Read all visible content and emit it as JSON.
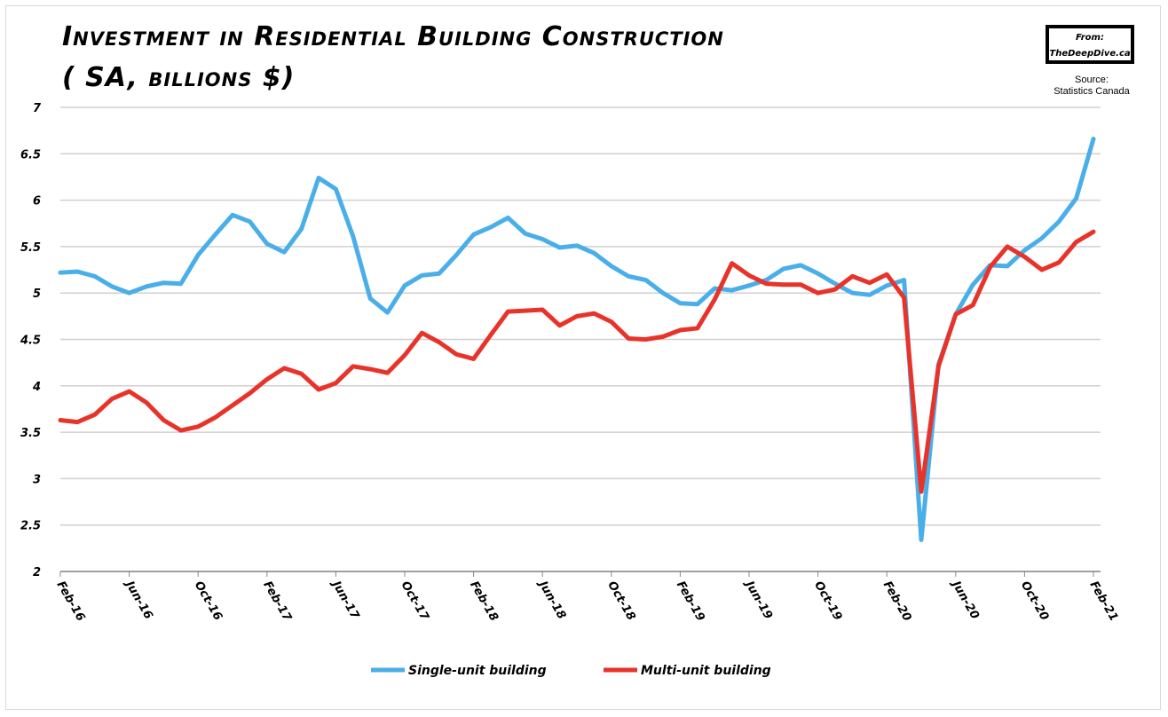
{
  "title_line1": "Investment in Residential Building Construction",
  "title_line2": "( SA, billions $)",
  "logo": {
    "line1": "From:",
    "line2": "TheDeepDive.ca"
  },
  "source": {
    "label": "Source:",
    "value": "Statistics Canada"
  },
  "chart_data": {
    "type": "line",
    "title": "Investment in Residential Building Construction ( SA, billions $)",
    "xlabel": "",
    "ylabel": "",
    "ylim": [
      2,
      7
    ],
    "yticks": [
      "2",
      "2.5",
      "3",
      "3.5",
      "4",
      "4.5",
      "5",
      "5.5",
      "6",
      "6.5",
      "7"
    ],
    "xticks": [
      "Feb-16",
      "Jun-16",
      "Oct-16",
      "Feb-17",
      "Jun-17",
      "Oct-17",
      "Feb-18",
      "Jun-18",
      "Oct-18",
      "Feb-19",
      "Jun-19",
      "Oct-19",
      "Feb-20",
      "Jun-20",
      "Oct-20",
      "Feb-21"
    ],
    "x_start": "Feb-16",
    "x_end": "Feb-21",
    "x_frequency": "monthly",
    "grid": "horizontal",
    "legend": "bottom",
    "series": [
      {
        "name": "Single-unit building",
        "color": "#4aaee9",
        "values": [
          5.22,
          5.23,
          5.18,
          5.07,
          5.0,
          5.07,
          5.11,
          5.1,
          5.41,
          5.63,
          5.84,
          5.77,
          5.53,
          5.44,
          5.69,
          6.24,
          6.12,
          5.61,
          4.94,
          4.79,
          5.08,
          5.19,
          5.21,
          5.41,
          5.63,
          5.71,
          5.81,
          5.64,
          5.58,
          5.49,
          5.51,
          5.43,
          5.29,
          5.18,
          5.14,
          5.0,
          4.89,
          4.88,
          5.05,
          5.03,
          5.08,
          5.14,
          5.26,
          5.3,
          5.21,
          5.1,
          5.0,
          4.98,
          5.08,
          5.14,
          2.34,
          4.23,
          4.77,
          5.09,
          5.3,
          5.29,
          5.46,
          5.59,
          5.77,
          6.02,
          6.66
        ]
      },
      {
        "name": "Multi-unit building",
        "color": "#e8332a",
        "values": [
          3.63,
          3.61,
          3.69,
          3.86,
          3.94,
          3.82,
          3.63,
          3.52,
          3.56,
          3.66,
          3.79,
          3.92,
          4.07,
          4.19,
          4.13,
          3.96,
          4.03,
          4.21,
          4.18,
          4.14,
          4.33,
          4.57,
          4.47,
          4.34,
          4.29,
          4.55,
          4.8,
          4.81,
          4.82,
          4.65,
          4.75,
          4.78,
          4.69,
          4.51,
          4.5,
          4.53,
          4.6,
          4.62,
          4.93,
          5.32,
          5.19,
          5.1,
          5.09,
          5.09,
          5.0,
          5.04,
          5.18,
          5.11,
          5.2,
          4.95,
          2.86,
          4.21,
          4.77,
          4.87,
          5.28,
          5.5,
          5.39,
          5.25,
          5.33,
          5.55,
          5.66
        ]
      }
    ]
  }
}
